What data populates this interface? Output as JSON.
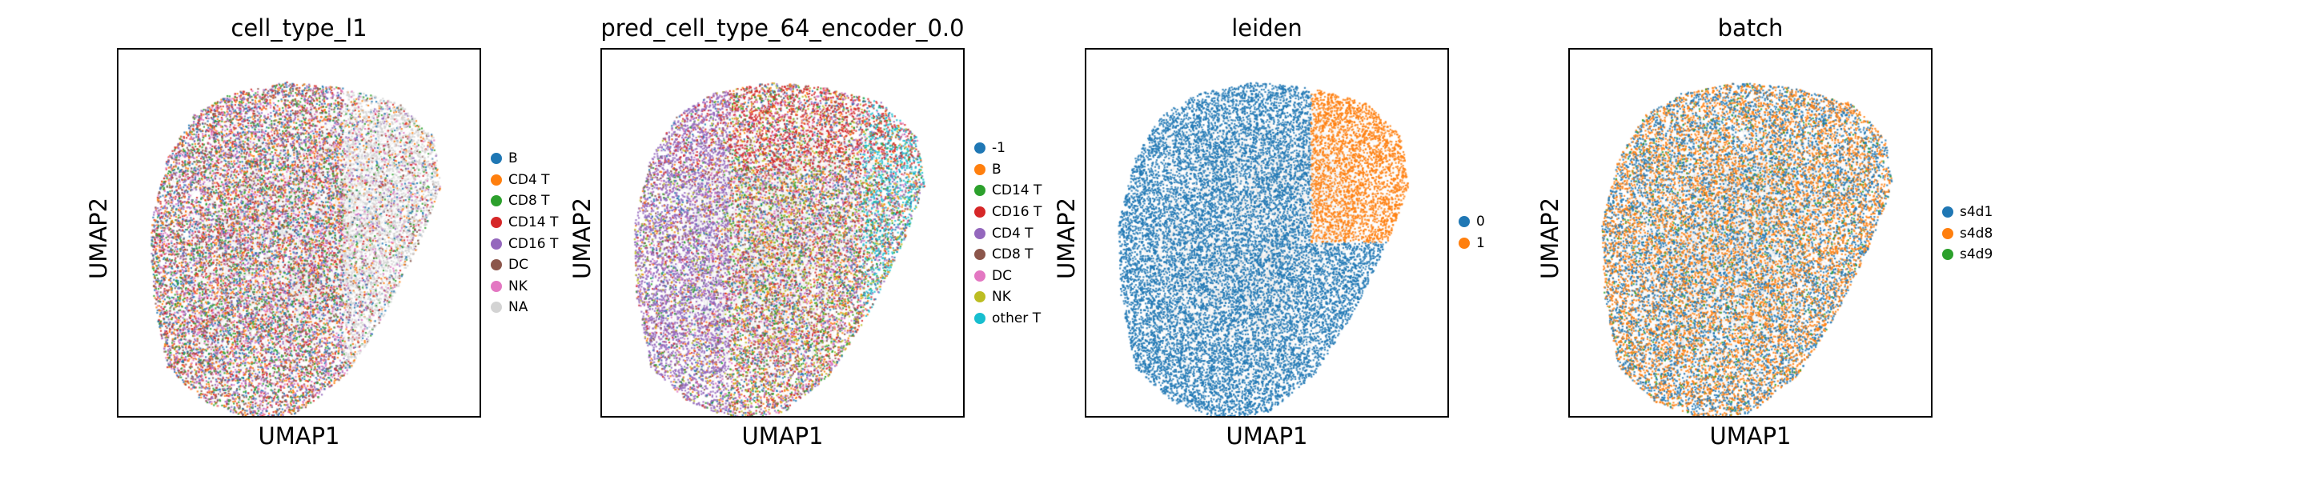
{
  "chart_data": [
    {
      "type": "scatter",
      "title": "cell_type_l1",
      "xlabel": "UMAP1",
      "ylabel": "UMAP2",
      "grid": false,
      "legend": "right",
      "colors": [
        "#1f77b4",
        "#ff7f0e",
        "#2ca02c",
        "#d62728",
        "#9467bd",
        "#8c564b",
        "#e377c2",
        "#d3d3d3"
      ],
      "series": [
        {
          "name": "B"
        },
        {
          "name": "CD4 T"
        },
        {
          "name": "CD8 T"
        },
        {
          "name": "CD14 T"
        },
        {
          "name": "CD16 T"
        },
        {
          "name": "DC"
        },
        {
          "name": "NK"
        },
        {
          "name": "NA"
        }
      ]
    },
    {
      "type": "scatter",
      "title": "pred_cell_type_64_encoder_0.0",
      "xlabel": "UMAP1",
      "ylabel": "UMAP2",
      "grid": false,
      "legend": "right",
      "colors": [
        "#1f77b4",
        "#ff7f0e",
        "#2ca02c",
        "#d62728",
        "#9467bd",
        "#8c564b",
        "#e377c2",
        "#bcbd22",
        "#17becf"
      ],
      "series": [
        {
          "name": "-1"
        },
        {
          "name": "B"
        },
        {
          "name": "CD14 T"
        },
        {
          "name": "CD16 T"
        },
        {
          "name": "CD4 T"
        },
        {
          "name": "CD8 T"
        },
        {
          "name": "DC"
        },
        {
          "name": "NK"
        },
        {
          "name": "other T"
        }
      ]
    },
    {
      "type": "scatter",
      "title": "leiden",
      "xlabel": "UMAP1",
      "ylabel": "UMAP2",
      "grid": false,
      "legend": "right",
      "colors": [
        "#1f77b4",
        "#ff7f0e"
      ],
      "series": [
        {
          "name": "0"
        },
        {
          "name": "1"
        }
      ]
    },
    {
      "type": "scatter",
      "title": "batch",
      "xlabel": "UMAP1",
      "ylabel": "UMAP2",
      "grid": false,
      "legend": "right",
      "colors": [
        "#1f77b4",
        "#ff7f0e",
        "#2ca02c"
      ],
      "series": [
        {
          "name": "s4d1"
        },
        {
          "name": "s4d8"
        },
        {
          "name": "s4d9"
        }
      ]
    }
  ]
}
